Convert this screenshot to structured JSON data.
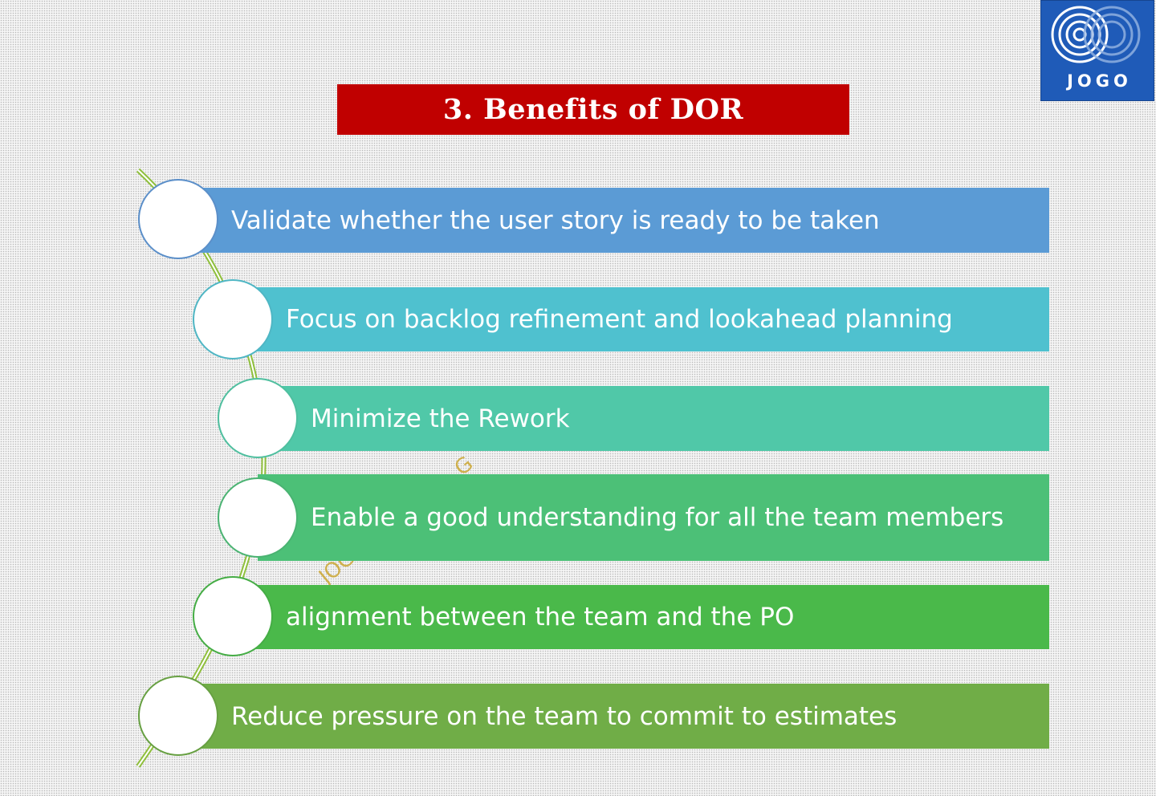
{
  "logo": {
    "text": "JOGO",
    "background": "#1f5bb8"
  },
  "title": {
    "text": "3. Benefits of DOR",
    "background": "#c00000"
  },
  "watermark": {
    "fragment_a": "G",
    "fragment_b": "JOG"
  },
  "items": [
    {
      "text": "Validate whether the user story is ready to be taken",
      "color": "#5b9bd5"
    },
    {
      "text": "Focus on backlog refinement and lookahead planning",
      "color": "#4fc1cf"
    },
    {
      "text": "Minimize the Rework",
      "color": "#50c8a8"
    },
    {
      "text": "Enable a good understanding for all the team members",
      "color": "#4cc077"
    },
    {
      "text": "alignment between the team and the PO",
      "color": "#4ab94a"
    },
    {
      "text": "Reduce pressure on the team to commit to estimates",
      "color": "#70ad47"
    }
  ]
}
